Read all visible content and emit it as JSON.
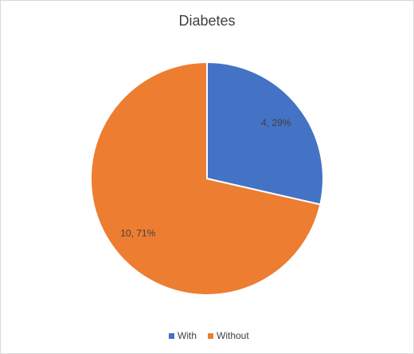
{
  "chart_data": {
    "type": "pie",
    "title": "Diabetes",
    "categories": [
      "With",
      "Without"
    ],
    "values": [
      4,
      10
    ],
    "value_labels": [
      "4, 29%",
      "10, 71%"
    ],
    "colors": [
      "#4472c4",
      "#ed7d31"
    ],
    "legend": "bottom"
  }
}
